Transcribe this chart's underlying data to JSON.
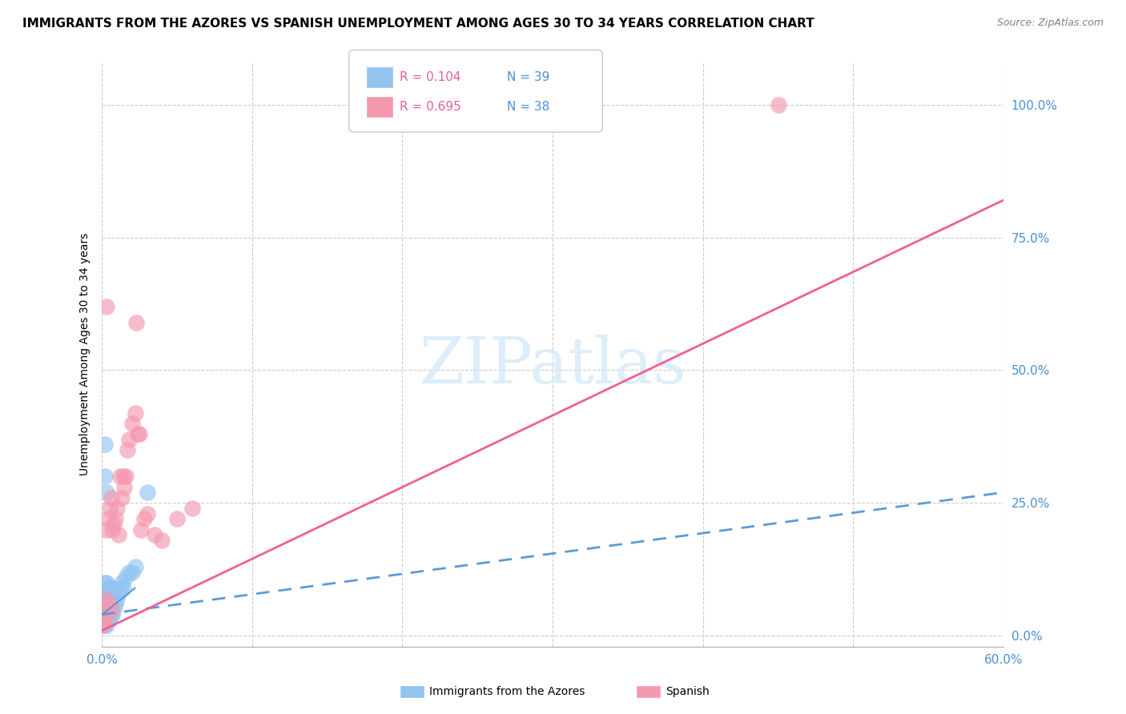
{
  "title": "IMMIGRANTS FROM THE AZORES VS SPANISH UNEMPLOYMENT AMONG AGES 30 TO 34 YEARS CORRELATION CHART",
  "source": "Source: ZipAtlas.com",
  "ylabel": "Unemployment Among Ages 30 to 34 years",
  "ytick_labels": [
    "0.0%",
    "25.0%",
    "50.0%",
    "75.0%",
    "100.0%"
  ],
  "ytick_values": [
    0.0,
    0.25,
    0.5,
    0.75,
    1.0
  ],
  "xmin": 0.0,
  "xmax": 0.6,
  "ymin": -0.02,
  "ymax": 1.08,
  "legend_r1": "R = 0.104",
  "legend_n1": "N = 39",
  "legend_r2": "R = 0.695",
  "legend_n2": "N = 38",
  "series1_color": "#93c4f0",
  "series2_color": "#f498b0",
  "series1_label": "Immigrants from the Azores",
  "series2_label": "Spanish",
  "trend1_color": "#5b9bd5",
  "trend2_color": "#f06090",
  "watermark_color": "#d8eaf8",
  "title_fontsize": 11,
  "tick_fontsize": 11,
  "azores_x": [
    0.001,
    0.001,
    0.001,
    0.002,
    0.002,
    0.002,
    0.002,
    0.002,
    0.003,
    0.003,
    0.003,
    0.003,
    0.003,
    0.004,
    0.004,
    0.004,
    0.005,
    0.005,
    0.005,
    0.006,
    0.006,
    0.007,
    0.007,
    0.008,
    0.008,
    0.009,
    0.01,
    0.011,
    0.012,
    0.013,
    0.014,
    0.016,
    0.018,
    0.02,
    0.022,
    0.002,
    0.002,
    0.003,
    0.03
  ],
  "azores_y": [
    0.02,
    0.04,
    0.06,
    0.02,
    0.04,
    0.06,
    0.08,
    0.1,
    0.02,
    0.04,
    0.06,
    0.08,
    0.1,
    0.03,
    0.07,
    0.09,
    0.03,
    0.06,
    0.09,
    0.04,
    0.08,
    0.04,
    0.08,
    0.05,
    0.09,
    0.06,
    0.07,
    0.08,
    0.09,
    0.1,
    0.09,
    0.11,
    0.12,
    0.12,
    0.13,
    0.3,
    0.36,
    0.27,
    0.27
  ],
  "spanish_x": [
    0.001,
    0.001,
    0.002,
    0.002,
    0.003,
    0.003,
    0.004,
    0.004,
    0.005,
    0.005,
    0.006,
    0.006,
    0.007,
    0.008,
    0.009,
    0.01,
    0.011,
    0.012,
    0.013,
    0.014,
    0.015,
    0.016,
    0.017,
    0.018,
    0.02,
    0.022,
    0.023,
    0.024,
    0.025,
    0.026,
    0.028,
    0.03,
    0.035,
    0.04,
    0.05,
    0.06,
    0.45,
    0.003
  ],
  "spanish_y": [
    0.02,
    0.05,
    0.03,
    0.07,
    0.04,
    0.2,
    0.05,
    0.22,
    0.06,
    0.24,
    0.05,
    0.26,
    0.2,
    0.21,
    0.22,
    0.24,
    0.19,
    0.3,
    0.26,
    0.3,
    0.28,
    0.3,
    0.35,
    0.37,
    0.4,
    0.42,
    0.59,
    0.38,
    0.38,
    0.2,
    0.22,
    0.23,
    0.19,
    0.18,
    0.22,
    0.24,
    1.0,
    0.62
  ],
  "trend1_x0": 0.0,
  "trend1_x1": 0.6,
  "trend1_y0": 0.04,
  "trend1_y1": 0.27,
  "trend2_x0": 0.0,
  "trend2_x1": 0.6,
  "trend2_y0": 0.01,
  "trend2_y1": 0.82
}
